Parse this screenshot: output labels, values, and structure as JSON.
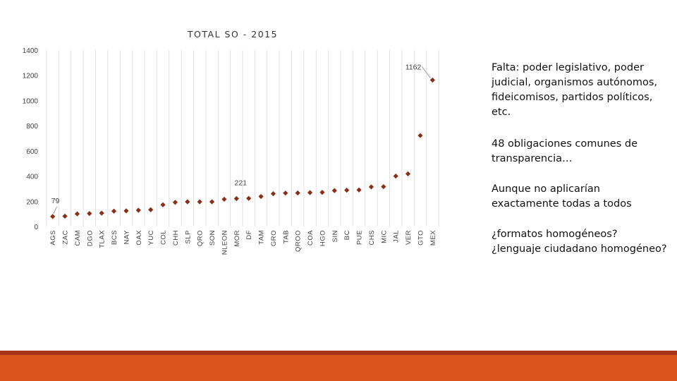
{
  "chart_data": {
    "type": "scatter",
    "title": "TOTAL SO - 2015",
    "categories": [
      "AGS",
      "ZAC",
      "CAM",
      "DGO",
      "TLAX",
      "BCS",
      "NAY",
      "OAX",
      "YUC",
      "COL",
      "CHH",
      "SLP",
      "QRO",
      "SON",
      "NLEON",
      "MOR",
      "DF",
      "TAM",
      "GRO",
      "TAB",
      "QROO",
      "COA",
      "HGO",
      "SIN",
      "BC",
      "PUE",
      "CHS",
      "MIC",
      "JAL",
      "VER",
      "GTO",
      "MEX"
    ],
    "values": [
      79,
      82,
      100,
      103,
      106,
      122,
      124,
      129,
      133,
      172,
      192,
      196,
      196,
      196,
      216,
      221,
      223,
      238,
      260,
      265,
      266,
      269,
      271,
      285,
      288,
      290,
      314,
      316,
      400,
      418,
      722,
      1162
    ],
    "annotations": [
      {
        "category": "AGS",
        "value": 79,
        "label": "79"
      },
      {
        "category": "MOR",
        "value": 221,
        "label": "221"
      },
      {
        "category": "MEX",
        "value": 1162,
        "label": "1162"
      }
    ],
    "ylim": [
      0,
      1400
    ],
    "yticks": [
      0,
      200,
      400,
      600,
      800,
      1000,
      1200,
      1400
    ],
    "ytick_labels": [
      "0",
      "200",
      "400",
      "600",
      "800",
      "1000",
      "1200",
      "1400"
    ],
    "grid": "vertical",
    "marker_color": "#8b2e16"
  },
  "notes": [
    "Falta: poder legislativo, poder judicial, organismos autónomos, fideicomisos, partidos políticos, etc.",
    "48 obligaciones comunes de transparencia…",
    "Aunque no aplicarían exactamente todas a todos",
    "¿formatos homogéneos? ¿lenguaje ciudadano homogéneo?"
  ],
  "colors": {
    "footer_line": "#a6331b",
    "footer_bar": "#d9541b",
    "grid": "#e2e2e2",
    "axis_text": "#404040"
  }
}
